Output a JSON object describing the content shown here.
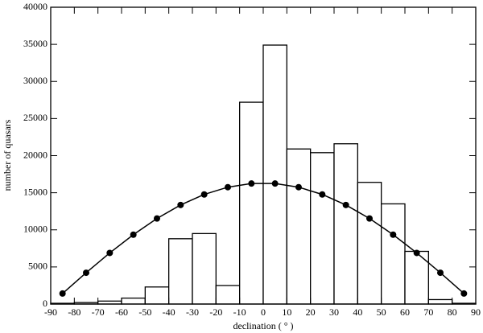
{
  "chart_data": {
    "type": "histogram",
    "xlabel": "declination ( ° )",
    "ylabel": "number of quasars",
    "bins": [
      -90,
      -80,
      -70,
      -60,
      -50,
      -40,
      -30,
      -20,
      -10,
      0,
      10,
      20,
      30,
      40,
      50,
      60,
      70,
      80,
      90
    ],
    "counts": [
      100,
      200,
      400,
      800,
      2300,
      8800,
      9500,
      2500,
      27200,
      34900,
      20900,
      20400,
      21600,
      16400,
      13500,
      7100,
      600,
      100
    ],
    "color": "#000000",
    "overlay": {
      "type": "line",
      "color": "#000000",
      "x": [
        -85,
        -75,
        -65,
        -55,
        -45,
        -35,
        -25,
        -15,
        -5,
        5,
        15,
        25,
        35,
        45,
        55,
        65,
        75,
        85
      ],
      "values": [
        1420,
        4220,
        6890,
        9350,
        11530,
        13350,
        14770,
        15750,
        16240,
        16240,
        15750,
        14770,
        13350,
        11530,
        9350,
        6890,
        4220,
        1420
      ]
    },
    "xlim": [
      -90,
      90
    ],
    "xticks": [
      -90,
      -80,
      -70,
      -60,
      -50,
      -40,
      -30,
      -20,
      -10,
      0,
      10,
      20,
      30,
      40,
      50,
      60,
      70,
      80,
      90
    ],
    "ylim": [
      0,
      40000
    ],
    "yticks": [
      0,
      5000,
      10000,
      15000,
      20000,
      25000,
      30000,
      35000,
      40000
    ]
  }
}
